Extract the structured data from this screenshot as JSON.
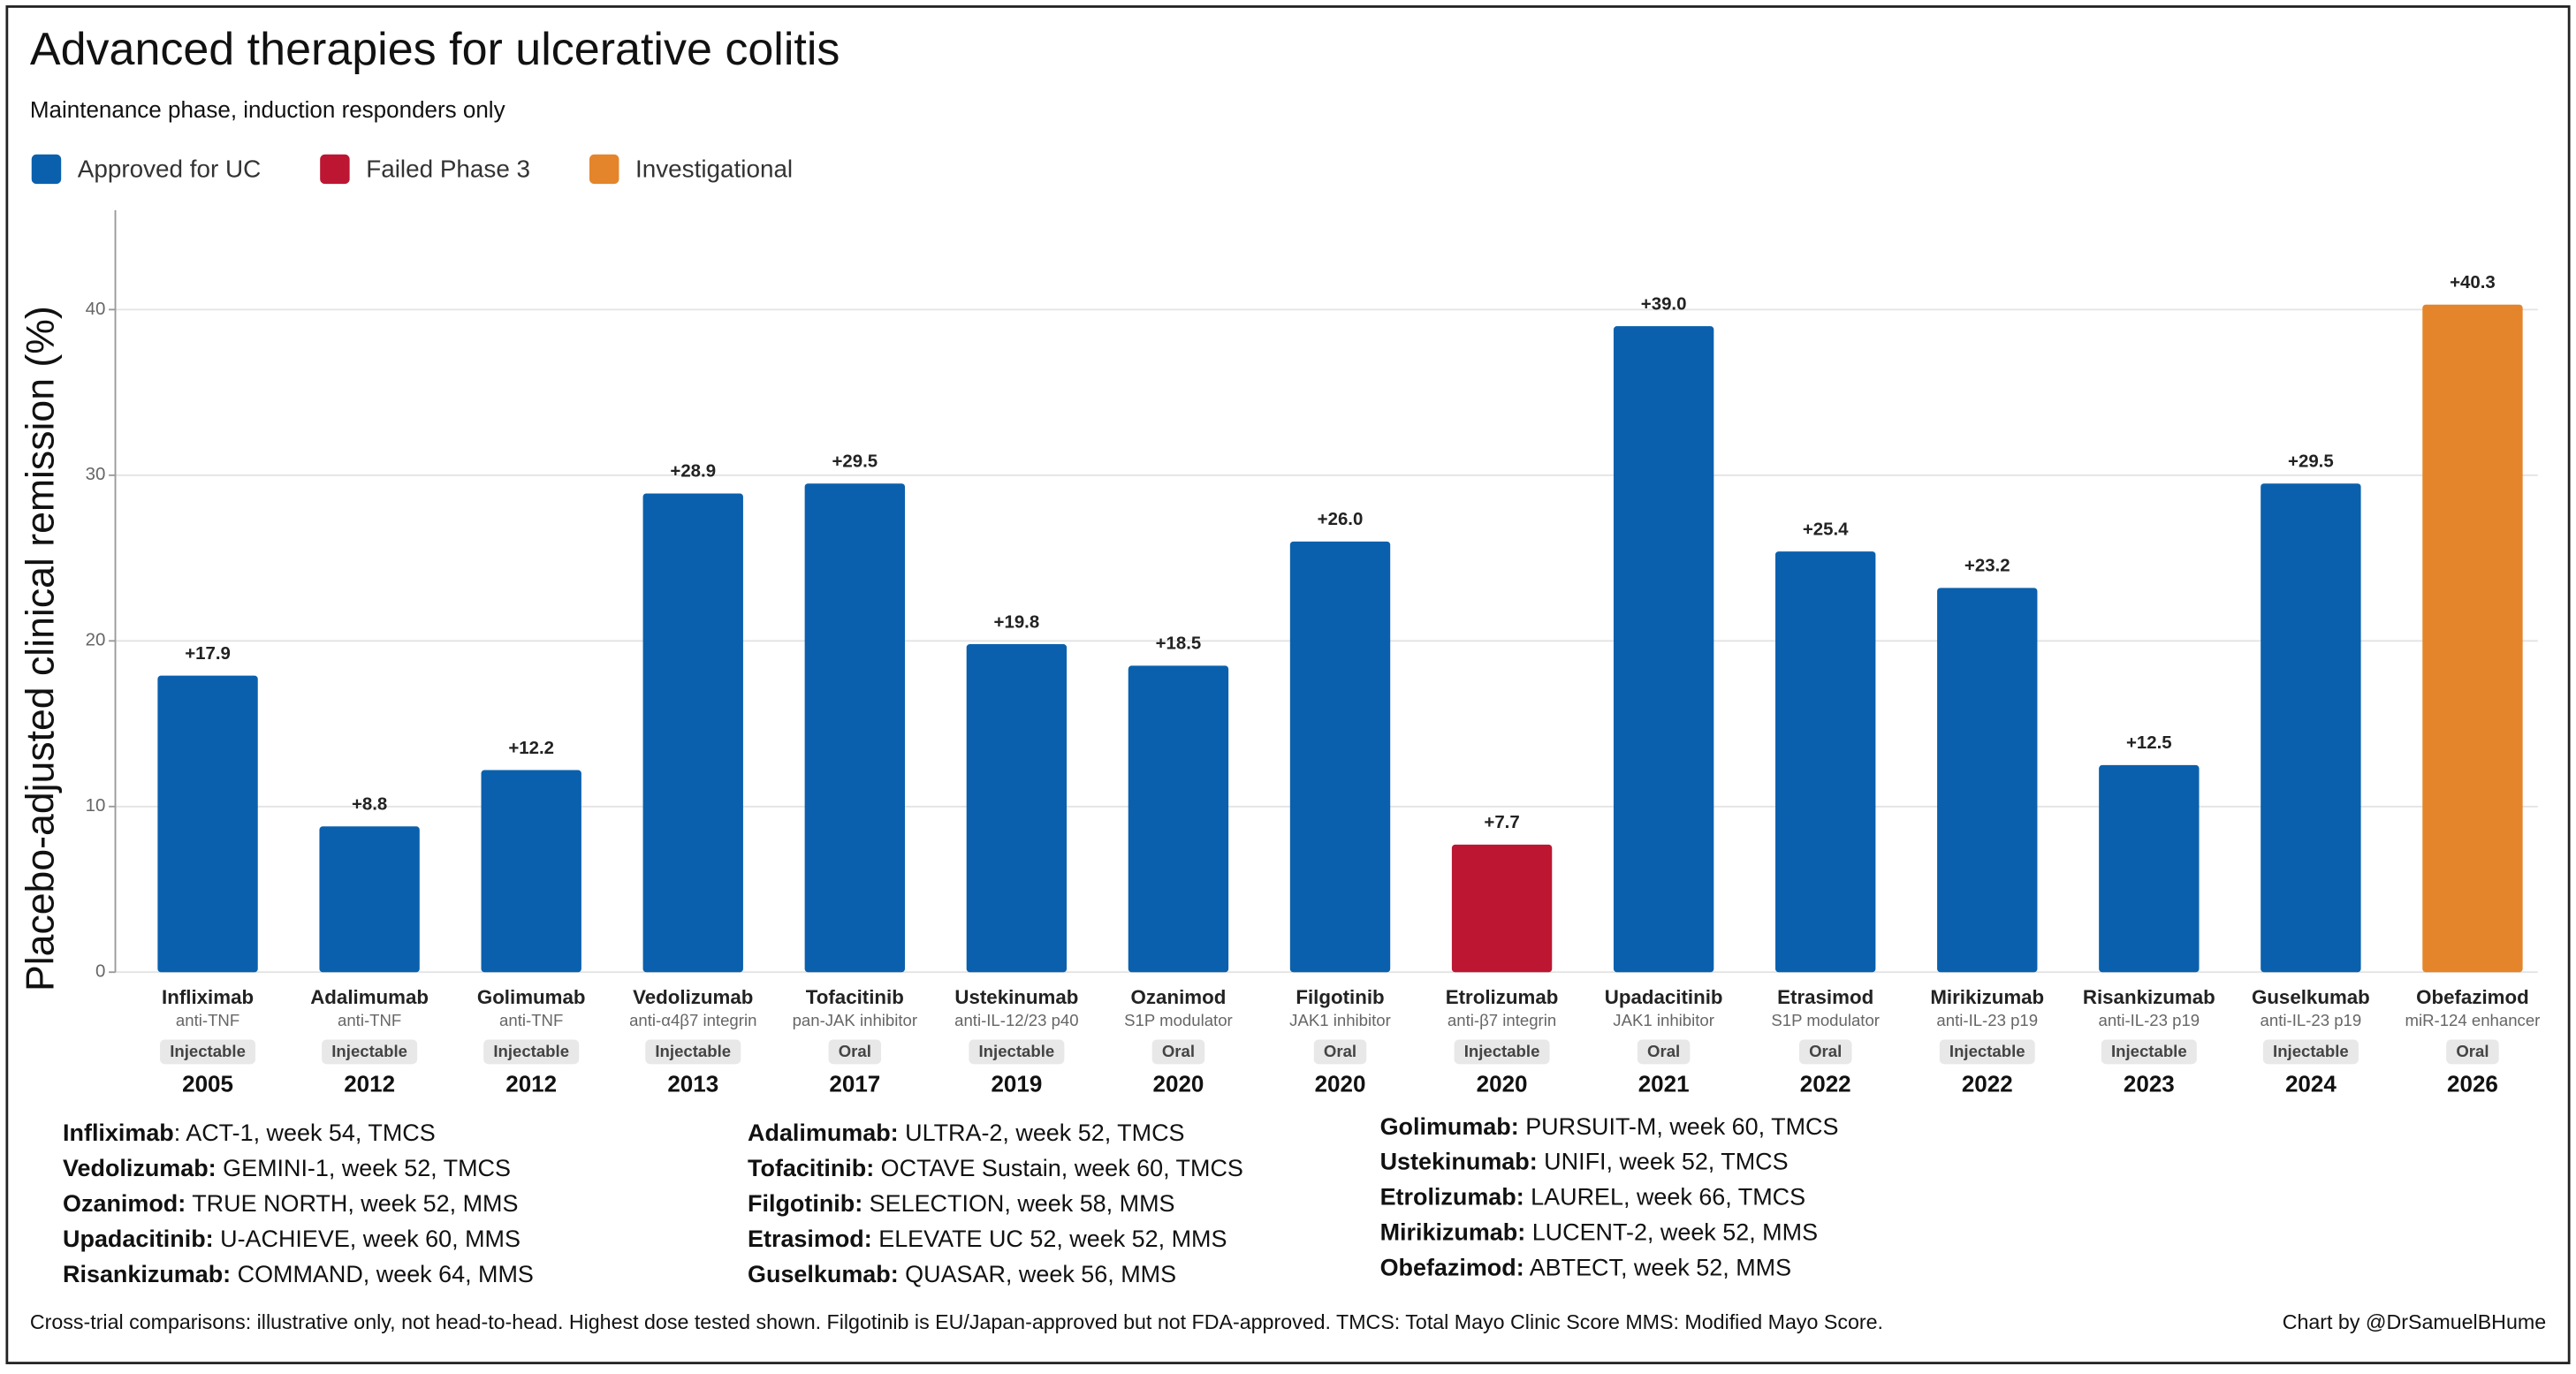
{
  "chart_data": {
    "type": "bar",
    "title": "Advanced therapies for ulcerative colitis",
    "subtitle": "Maintenance phase, induction responders only",
    "legend": [
      {
        "name": "Approved for UC",
        "color": "#0a60ad"
      },
      {
        "name": "Failed Phase 3",
        "color": "#bc1632"
      },
      {
        "name": "Investigational",
        "color": "#e4852b"
      }
    ],
    "y_label": "Placebo-adjusted clinical remission (%)",
    "categories": [
      "Infliximab",
      "Adalimumab",
      "Golimumab",
      "Vedolizumab",
      "Tofacitinib",
      "Ustekinumab",
      "Ozanimod",
      "Filgotinib",
      "Etrolizumab",
      "Upadacitinib",
      "Etrasimod",
      "Mirikizumab",
      "Risankizumab",
      "Guselkumab",
      "Obefazimod"
    ],
    "mechanisms": [
      "anti-TNF",
      "anti-TNF",
      "anti-TNF",
      "anti-α4β7 integrin",
      "pan-JAK inhibitor",
      "anti-IL-12/23 p40",
      "S1P modulator",
      "JAK1 inhibitor",
      "anti-β7 integrin",
      "JAK1 inhibitor",
      "S1P modulator",
      "anti-IL-23 p19",
      "anti-IL-23 p19",
      "anti-IL-23 p19",
      "miR-124 enhancer"
    ],
    "routes": [
      "Injectable",
      "Injectable",
      "Injectable",
      "Injectable",
      "Oral",
      "Injectable",
      "Oral",
      "Oral",
      "Injectable",
      "Oral",
      "Oral",
      "Injectable",
      "Injectable",
      "Injectable",
      "Oral"
    ],
    "years": [
      "2005",
      "2012",
      "2012",
      "2013",
      "2017",
      "2019",
      "2020",
      "2020",
      "2020",
      "2021",
      "2022",
      "2022",
      "2023",
      "2024",
      "2026"
    ],
    "values": [
      17.9,
      8.8,
      12.2,
      28.9,
      29.5,
      19.8,
      18.5,
      26.0,
      7.7,
      39.0,
      25.4,
      23.2,
      12.5,
      29.5,
      40.3
    ],
    "value_labels": [
      "+17.9",
      "+8.8",
      "+12.2",
      "+28.9",
      "+29.5",
      "+19.8",
      "+18.5",
      "+26.0",
      "+7.7",
      "+39.0",
      "+25.4",
      "+23.2",
      "+12.5",
      "+29.5",
      "+40.3"
    ],
    "colors": [
      "#0a60ad",
      "#0a60ad",
      "#0a60ad",
      "#0a60ad",
      "#0a60ad",
      "#0a60ad",
      "#0a60ad",
      "#0a60ad",
      "#bc1632",
      "#0a60ad",
      "#0a60ad",
      "#0a60ad",
      "#0a60ad",
      "#0a60ad",
      "#e4852b"
    ],
    "ylim": [
      0,
      46
    ],
    "yticks": [
      0,
      10,
      20,
      30,
      40
    ],
    "grid": true,
    "trial_notes": [
      [
        {
          "drug": "Infliximab",
          "detail": ": ACT-1, week 54, TMCS"
        },
        {
          "drug": "Vedolizumab:",
          "detail": " GEMINI-1, week 52, TMCS"
        },
        {
          "drug": "Ozanimod:",
          "detail": " TRUE NORTH, week 52, MMS"
        },
        {
          "drug": "Upadacitinib:",
          "detail": " U-ACHIEVE, week 60, MMS"
        },
        {
          "drug": "Risankizumab:",
          "detail": " COMMAND, week 64, MMS"
        }
      ],
      [
        {
          "drug": "Adalimumab:",
          "detail": " ULTRA-2, week 52, TMCS"
        },
        {
          "drug": "Tofacitinib:",
          "detail": " OCTAVE Sustain, week 60, TMCS"
        },
        {
          "drug": "Filgotinib:",
          "detail": " SELECTION, week 58, MMS"
        },
        {
          "drug": "Etrasimod:",
          "detail": " ELEVATE UC 52, week 52, MMS"
        },
        {
          "drug": "Guselkumab:",
          "detail": " QUASAR, week 56, MMS"
        }
      ],
      [
        {
          "drug": "Golimumab:",
          "detail": " PURSUIT-M, week 60, TMCS"
        },
        {
          "drug": "Ustekinumab:",
          "detail": " UNIFI, week 52, TMCS"
        },
        {
          "drug": "Etrolizumab:",
          "detail": " LAUREL, week 66, TMCS"
        },
        {
          "drug": "Mirikizumab:",
          "detail": " LUCENT-2, week 52, MMS"
        },
        {
          "drug": "Obefazimod:",
          "detail": " ABTECT, week 52, MMS"
        }
      ]
    ],
    "footnote": "Cross-trial comparisons: illustrative only, not head-to-head. Highest dose tested shown. Filgotinib is EU/Japan-approved but not FDA-approved. TMCS: Total Mayo Clinic Score  MMS: Modified Mayo Score.",
    "credit": "Chart by @DrSamuelBHume"
  }
}
